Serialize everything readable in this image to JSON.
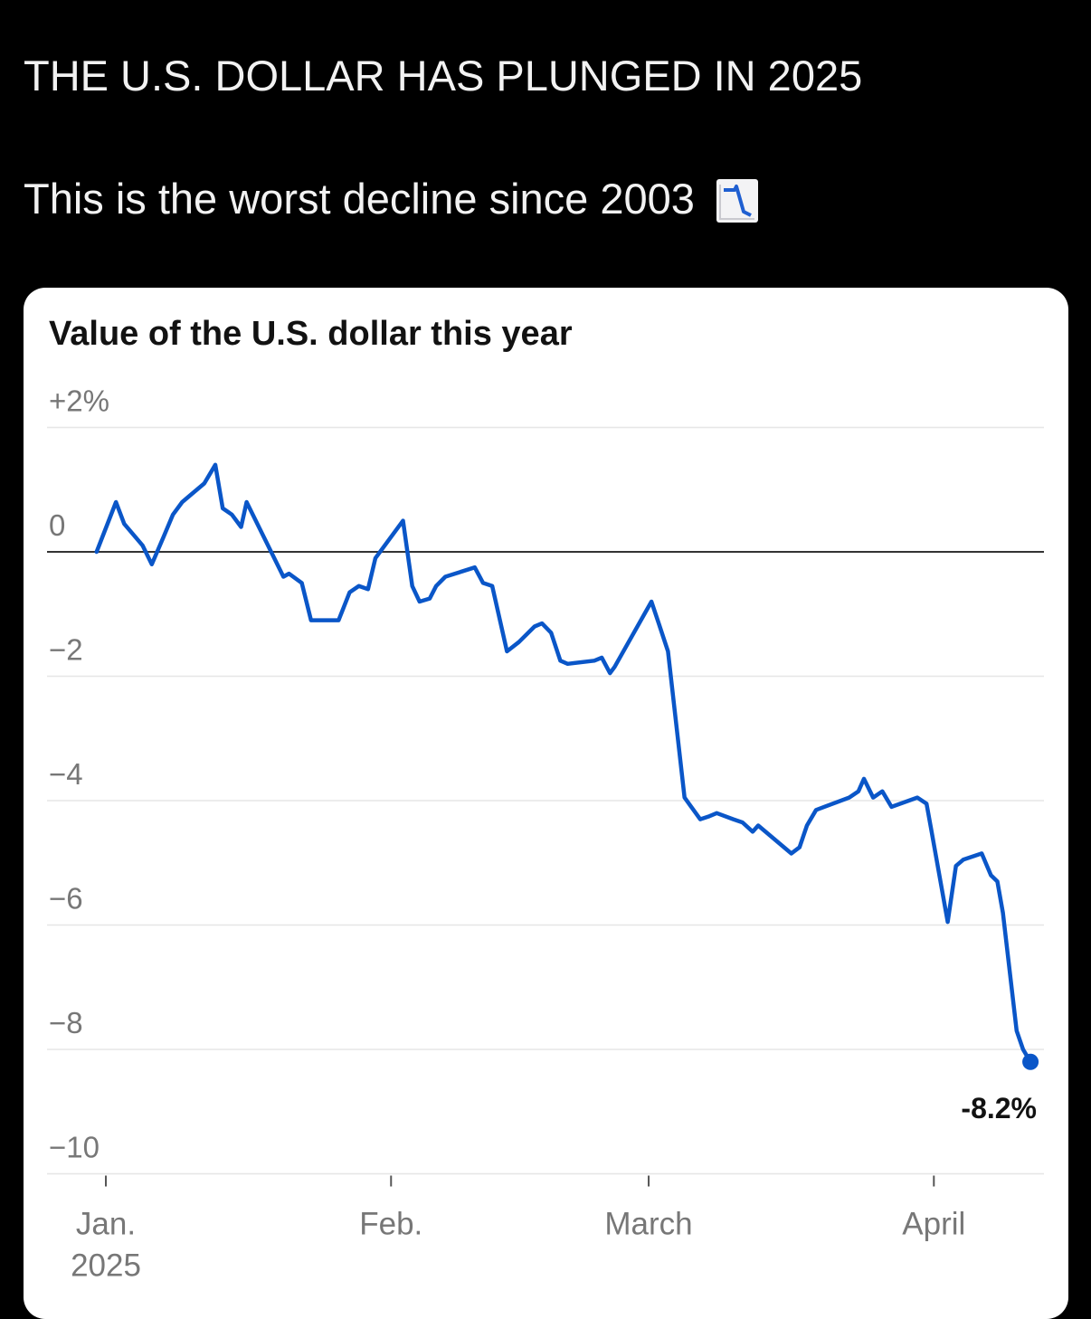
{
  "post": {
    "headline": "THE U.S. DOLLAR HAS PLUNGED IN 2025",
    "subline": "This is the worst decline since 2003",
    "emoji_icon": "chart-decreasing-icon"
  },
  "chart_data": {
    "type": "line",
    "title": "Value of the U.S. dollar this year",
    "ylim": [
      -10,
      2
    ],
    "y_ticks": [
      {
        "value": 2,
        "label": "+2%"
      },
      {
        "value": 0,
        "label": "0"
      },
      {
        "value": -2,
        "label": "−2"
      },
      {
        "value": -4,
        "label": "−4"
      },
      {
        "value": -6,
        "label": "−6"
      },
      {
        "value": -8,
        "label": "−8"
      },
      {
        "value": -10,
        "label": "−10"
      }
    ],
    "x_ticks": [
      {
        "day": 1,
        "label": "Jan.",
        "sublabel": "2025"
      },
      {
        "day": 32,
        "label": "Feb.",
        "sublabel": ""
      },
      {
        "day": 60,
        "label": "March",
        "sublabel": ""
      },
      {
        "day": 91,
        "label": "April",
        "sublabel": ""
      }
    ],
    "grid": true,
    "zero_line": true,
    "line_color": "#0a56c8",
    "end_value_label": "-8.2%",
    "series": [
      {
        "x": [
          0.0,
          2.1,
          3.0,
          5.0,
          6.0,
          7.3,
          8.3,
          9.3,
          10.1,
          11.7,
          12.9,
          13.7,
          14.7,
          15.7,
          16.3,
          20.3,
          20.9,
          22.3,
          23.3,
          26.3,
          27.5,
          28.5,
          29.5,
          30.3,
          33.3,
          34.3,
          35.1,
          36.2,
          36.9,
          37.9,
          41.1,
          42.0,
          43.0,
          44.6,
          45.9,
          47.6,
          48.4,
          49.4,
          50.4,
          51.2,
          54.1,
          54.9,
          55.8,
          56.3,
          60.3,
          61.1,
          62.1,
          63.9,
          65.6,
          66.6,
          67.4,
          69.2,
          70.2,
          71.3,
          71.9,
          75.5,
          76.4,
          77.2,
          78.2,
          81.8,
          82.8,
          83.4,
          84.4,
          85.4,
          86.4,
          89.2,
          90.2,
          90.7,
          92.5,
          93.4,
          94.2,
          96.2,
          97.2,
          97.9,
          98.5,
          100.0,
          100.7,
          101.5
        ],
        "values": [
          0.0,
          0.8,
          0.45,
          0.1,
          -0.2,
          0.25,
          0.6,
          0.8,
          0.9,
          1.1,
          1.4,
          0.7,
          0.6,
          0.4,
          0.8,
          -0.4,
          -0.35,
          -0.5,
          -1.1,
          -1.1,
          -0.65,
          -0.55,
          -0.6,
          -0.1,
          0.5,
          -0.55,
          -0.8,
          -0.75,
          -0.55,
          -0.4,
          -0.25,
          -0.5,
          -0.55,
          -1.6,
          -1.45,
          -1.2,
          -1.15,
          -1.3,
          -1.75,
          -1.8,
          -1.75,
          -1.7,
          -1.95,
          -1.85,
          -0.8,
          -1.15,
          -1.6,
          -3.95,
          -4.3,
          -4.25,
          -4.2,
          -4.3,
          -4.35,
          -4.5,
          -4.4,
          -4.85,
          -4.75,
          -4.4,
          -4.15,
          -3.95,
          -3.85,
          -3.65,
          -3.95,
          -3.85,
          -4.1,
          -3.95,
          -4.05,
          -4.45,
          -5.95,
          -5.05,
          -4.95,
          -4.85,
          -5.2,
          -5.3,
          -5.8,
          -7.7,
          -8.0,
          -8.2
        ]
      }
    ]
  }
}
